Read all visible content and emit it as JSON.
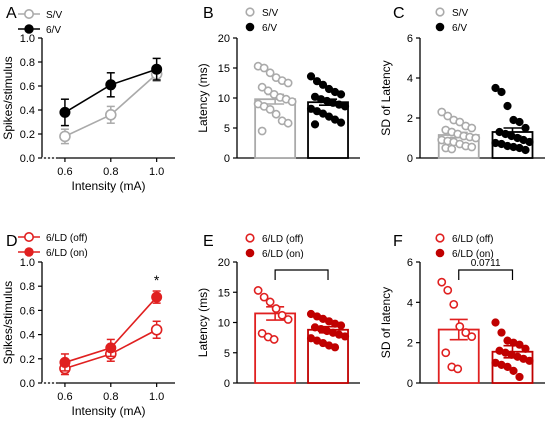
{
  "chart_data": [
    {
      "panel": "A",
      "type": "line",
      "x": [
        0.6,
        0.8,
        1.0
      ],
      "xticks": [
        "0.6",
        "0.8",
        "1.0"
      ],
      "xlabel": "Intensity (mA)",
      "ylabel": "Spikes/stimulus",
      "ylim": [
        0,
        1.0
      ],
      "yticks": [
        "0.0",
        "0.2",
        "0.4",
        "0.6",
        "0.8",
        "1.0"
      ],
      "legend_position": "top-left",
      "series": [
        {
          "name": "S/V",
          "color": "#aaaaaa",
          "marker": "open-circle",
          "values": [
            0.18,
            0.36,
            0.7
          ],
          "err": [
            0.06,
            0.07,
            0.06
          ]
        },
        {
          "name": "6/V",
          "color": "#000000",
          "marker": "filled-circle",
          "values": [
            0.38,
            0.61,
            0.74
          ],
          "err": [
            0.11,
            0.1,
            0.09
          ]
        }
      ]
    },
    {
      "panel": "B",
      "type": "bar",
      "categories": [
        "S/V",
        "6/V"
      ],
      "ylabel": "Latency (ms)",
      "ylim": [
        0,
        20
      ],
      "yticks": [
        "0",
        "5",
        "10",
        "15",
        "20"
      ],
      "legend_position": "top",
      "series": [
        {
          "name": "S/V",
          "color": "#aaaaaa",
          "marker": "open-circle",
          "mean": 9.8,
          "err": 0.8,
          "points": [
            15.3,
            15.0,
            14.2,
            13.4,
            12.9,
            12.5,
            11.8,
            11.2,
            10.6,
            10.1,
            9.8,
            9.4,
            9.0,
            8.6,
            8.1,
            7.3,
            6.2,
            5.8,
            4.5
          ]
        },
        {
          "name": "6/V",
          "color": "#000000",
          "marker": "filled-circle",
          "mean": 9.3,
          "err": 0.5,
          "points": [
            13.6,
            12.8,
            12.2,
            11.5,
            11.0,
            10.6,
            10.2,
            9.8,
            9.5,
            9.2,
            8.9,
            8.6,
            8.2,
            7.8,
            7.4,
            6.9,
            6.4,
            5.9,
            5.6
          ]
        }
      ]
    },
    {
      "panel": "C",
      "type": "bar",
      "categories": [
        "S/V",
        "6/V"
      ],
      "ylabel": "SD of Latency",
      "ylim": [
        0,
        6
      ],
      "yticks": [
        "0",
        "2",
        "4",
        "6"
      ],
      "legend_position": "top",
      "series": [
        {
          "name": "S/V",
          "color": "#aaaaaa",
          "marker": "open-circle",
          "mean": 1.15,
          "err": 0.13,
          "points": [
            2.3,
            2.1,
            1.9,
            1.8,
            1.6,
            1.5,
            1.4,
            1.3,
            1.2,
            1.1,
            1.05,
            1.0,
            0.9,
            0.85,
            0.8,
            0.7,
            0.6,
            0.55,
            0.5,
            0.45
          ]
        },
        {
          "name": "6/V",
          "color": "#000000",
          "marker": "filled-circle",
          "mean": 1.3,
          "err": 0.2,
          "points": [
            3.5,
            3.3,
            2.6,
            1.9,
            1.8,
            1.5,
            1.3,
            1.2,
            1.1,
            1.0,
            0.9,
            0.8,
            0.75,
            0.7,
            0.6,
            0.55,
            0.5,
            0.4
          ]
        }
      ]
    },
    {
      "panel": "D",
      "type": "line",
      "x": [
        0.6,
        0.8,
        1.0
      ],
      "xticks": [
        "0.6",
        "0.8",
        "1.0"
      ],
      "xlabel": "Intensity (mA)",
      "ylabel": "Spikes/stimulus",
      "ylim": [
        0,
        1.0
      ],
      "yticks": [
        "0.0",
        "0.2",
        "0.4",
        "0.6",
        "0.8",
        "1.0"
      ],
      "legend_position": "top-left",
      "annotation": "*",
      "series": [
        {
          "name": "6/LD (off)",
          "color": "#e02020",
          "marker": "open-circle",
          "values": [
            0.12,
            0.24,
            0.44
          ],
          "err": [
            0.05,
            0.06,
            0.07
          ]
        },
        {
          "name": "6/LD (on)",
          "color": "#e02020",
          "marker": "filled-circle",
          "values": [
            0.17,
            0.29,
            0.71
          ],
          "err": [
            0.07,
            0.07,
            0.05
          ]
        }
      ]
    },
    {
      "panel": "E",
      "type": "bar",
      "categories": [
        "6/LD (off)",
        "6/LD (on)"
      ],
      "ylabel": "Latency (ms)",
      "ylim": [
        0,
        20
      ],
      "yticks": [
        "0",
        "5",
        "10",
        "15",
        "20"
      ],
      "legend_position": "top",
      "bracket": true,
      "series": [
        {
          "name": "6/LD (off)",
          "color": "#e02020",
          "marker": "open-circle",
          "mean": 11.5,
          "err": 1.1,
          "points": [
            15.3,
            14.2,
            13.4,
            12.3,
            11.2,
            10.5,
            8.2,
            7.6,
            7.2
          ]
        },
        {
          "name": "6/LD (on)",
          "color": "#c00000",
          "marker": "filled-circle",
          "mean": 8.8,
          "err": 0.5,
          "points": [
            11.4,
            11.0,
            10.6,
            10.2,
            9.8,
            9.5,
            9.2,
            8.9,
            8.6,
            8.3,
            8.0,
            7.7,
            7.4,
            7.0,
            6.6,
            6.2,
            5.9
          ]
        }
      ]
    },
    {
      "panel": "F",
      "type": "bar",
      "categories": [
        "6/LD (off)",
        "6/LD (on)"
      ],
      "ylabel": "SD of latency",
      "ylim": [
        0,
        6
      ],
      "yticks": [
        "0",
        "2",
        "4",
        "6"
      ],
      "legend_position": "top",
      "bracket_label": "0.0711",
      "series": [
        {
          "name": "6/LD (off)",
          "color": "#e02020",
          "marker": "open-circle",
          "mean": 2.65,
          "err": 0.5,
          "points": [
            5.0,
            4.6,
            3.9,
            2.8,
            2.5,
            2.3,
            1.5,
            0.8,
            0.7
          ]
        },
        {
          "name": "6/LD (on)",
          "color": "#c00000",
          "marker": "filled-circle",
          "mean": 1.55,
          "err": 0.3,
          "points": [
            3.0,
            2.5,
            2.1,
            2.0,
            1.9,
            1.7,
            1.6,
            1.5,
            1.4,
            1.3,
            1.2,
            1.1,
            1.0,
            0.9,
            0.8,
            0.6,
            0.3
          ]
        }
      ]
    }
  ]
}
